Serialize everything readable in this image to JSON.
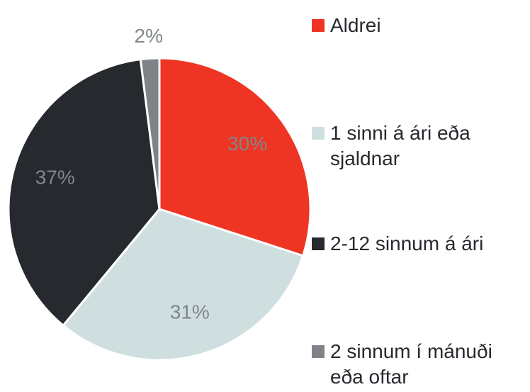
{
  "chart_data": {
    "type": "pie",
    "categories": [
      "Aldrei",
      "1 sinni á ári eða sjaldnar",
      "2-12 sinnum á ári",
      "2 sinnum í mánuði eða oftar"
    ],
    "values": [
      30,
      31,
      37,
      2
    ],
    "value_labels": [
      "30%",
      "31%",
      "37%",
      "2%"
    ],
    "colors": [
      "#ee3524",
      "#cfdfe0",
      "#26292e",
      "#7f8387"
    ],
    "legend": "right"
  }
}
